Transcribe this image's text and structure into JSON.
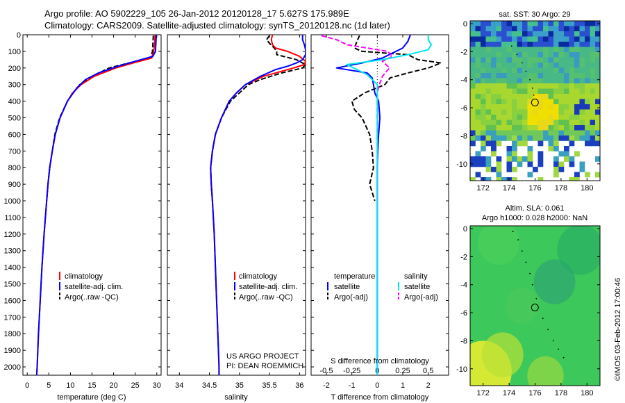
{
  "title": {
    "line1": "Argo profile: AO 5902229_105 26-Jan-2012 20120128_17 5.627S 175.989E",
    "line2": "Climatology: CARS2009. Satellite-adjusted climatology: synTS_20120128.nc (1d later)"
  },
  "colors": {
    "climatology": "#ff0000",
    "satellite": "#0000ff",
    "argo": "#000000",
    "sal_satellite": "#00e5ee",
    "sal_argo": "#ff00ff"
  },
  "chart_data": [
    {
      "type": "line",
      "panel": "temperature",
      "xlabel": "temperature (deg C)",
      "ylabel": "",
      "xlim": [
        -1,
        31
      ],
      "ylim": [
        2050,
        0
      ],
      "xticks": [
        0,
        5,
        10,
        15,
        20,
        25,
        30
      ],
      "xtick_labels": [
        "0",
        "5",
        "10",
        "15",
        "20",
        "25",
        "30"
      ],
      "yticks": [
        0,
        100,
        200,
        300,
        400,
        500,
        600,
        700,
        800,
        900,
        1000,
        1100,
        1200,
        1300,
        1400,
        1500,
        1600,
        1700,
        1800,
        1900,
        2000
      ],
      "ytick_labels": [
        "0",
        "100",
        "200",
        "300",
        "400",
        "500",
        "600",
        "700",
        "800",
        "900",
        "1000",
        "1100",
        "1200",
        "1300",
        "1400",
        "1500",
        "1600",
        "1700",
        "1800",
        "1900",
        "2000"
      ],
      "legend": [
        "climatology",
        "satellite-adj. clim.",
        "Argo(..raw -QC)"
      ],
      "series": [
        {
          "name": "climatology",
          "depth": [
            0,
            50,
            100,
            140,
            170,
            200,
            250,
            300,
            350,
            400,
            500,
            600,
            700,
            800,
            900,
            1000,
            1200,
            1400,
            1600,
            1800,
            2000,
            2050
          ],
          "values": [
            29.6,
            29.5,
            29.3,
            28.8,
            24.5,
            20.5,
            15.5,
            12.5,
            10.5,
            9.3,
            7.6,
            6.5,
            5.8,
            5.2,
            4.8,
            4.5,
            3.9,
            3.4,
            3.0,
            2.6,
            2.3,
            2.2
          ]
        },
        {
          "name": "satellite-adj. clim.",
          "depth": [
            0,
            50,
            100,
            130,
            160,
            190,
            230,
            270,
            320,
            400,
            500,
            600,
            700,
            800,
            900,
            1000,
            1200,
            1400,
            1600,
            1800,
            2000,
            2050
          ],
          "values": [
            29.9,
            29.8,
            29.7,
            29.1,
            25.0,
            21.0,
            16.5,
            13.5,
            11.5,
            9.3,
            7.6,
            6.5,
            5.8,
            5.2,
            4.8,
            4.5,
            3.9,
            3.4,
            3.0,
            2.6,
            2.3,
            2.2
          ]
        },
        {
          "name": "Argo(..raw -QC)",
          "depth": [
            5,
            50,
            100,
            140,
            170,
            200,
            250,
            300,
            350,
            400,
            500,
            600,
            700,
            800,
            900,
            1000
          ],
          "values": [
            29.2,
            29.1,
            29.0,
            28.5,
            23.5,
            19.0,
            15.0,
            12.2,
            10.6,
            9.3,
            7.5,
            6.4,
            5.8,
            5.2,
            4.8,
            4.5
          ]
        }
      ]
    },
    {
      "type": "line",
      "panel": "salinity",
      "xlabel": "salinity",
      "ylabel": "",
      "xlim": [
        33.8,
        36.1
      ],
      "ylim": [
        2050,
        0
      ],
      "xticks": [
        34,
        34.5,
        35,
        35.5,
        36
      ],
      "xtick_labels": [
        "34",
        "34.5",
        "35",
        "35.5",
        "36"
      ],
      "legend": [
        "climatology",
        "satellite-adj. clim.",
        "Argo(..raw -QC)"
      ],
      "annotations": [
        "US ARGO PROJECT",
        "PI: DEAN ROEMMICH"
      ],
      "series": [
        {
          "name": "climatology",
          "depth": [
            0,
            30,
            60,
            80,
            100,
            130,
            160,
            180,
            200,
            250,
            300,
            350,
            400,
            500,
            600,
            700,
            800,
            900,
            1000,
            1200,
            1400,
            1600,
            1800,
            2000,
            2050
          ],
          "values": [
            35.55,
            35.53,
            35.55,
            35.6,
            35.8,
            36.0,
            36.1,
            36.08,
            35.9,
            35.4,
            35.1,
            34.95,
            34.83,
            34.7,
            34.6,
            34.55,
            34.52,
            34.53,
            34.55,
            34.58,
            34.6,
            34.62,
            34.64,
            34.66,
            34.66
          ]
        },
        {
          "name": "satellite-adj. clim.",
          "depth": [
            0,
            30,
            60,
            90,
            120,
            150,
            170,
            190,
            210,
            250,
            300,
            350,
            400,
            500,
            600,
            700,
            800,
            900,
            1000,
            1200,
            1400,
            1600,
            1800,
            2000,
            2050
          ],
          "values": [
            36.05,
            36.05,
            36.08,
            36.1,
            36.1,
            36.05,
            35.95,
            35.8,
            35.6,
            35.35,
            35.1,
            34.95,
            34.83,
            34.7,
            34.6,
            34.55,
            34.52,
            34.53,
            34.55,
            34.58,
            34.6,
            34.62,
            34.64,
            34.66,
            34.66
          ]
        },
        {
          "name": "Argo(..raw -QC)",
          "depth": [
            5,
            30,
            60,
            80,
            100,
            120,
            150,
            180,
            200,
            230,
            270,
            300,
            350,
            400,
            500,
            600,
            700,
            800,
            900,
            1000
          ],
          "values": [
            35.5,
            35.45,
            35.52,
            35.58,
            35.62,
            35.62,
            35.95,
            36.1,
            36.05,
            35.7,
            35.35,
            35.15,
            35.0,
            34.85,
            34.7,
            34.6,
            34.55,
            34.52,
            34.53,
            34.55
          ]
        }
      ]
    },
    {
      "type": "line",
      "panel": "difference",
      "xlabel": "T difference from climatology",
      "xlabel_top": "S difference from climatology",
      "xlim": [
        -2.6,
        2.8
      ],
      "ylim": [
        2050,
        0
      ],
      "xticks": [
        -2,
        -1,
        0,
        1,
        2
      ],
      "xtick_labels": [
        "-2",
        "-1",
        "0",
        "1",
        "2"
      ],
      "sticks": [
        -0.5,
        -0.25,
        0,
        0.25,
        0.5
      ],
      "stick_labels": [
        "-0.5",
        "-0.25",
        "0",
        "0.25",
        "0.5"
      ],
      "legend": [
        "temperature",
        "satellite",
        "Argo(-adj)",
        "salinity",
        "satellite",
        "Argo(-adj)"
      ],
      "series": [
        {
          "name": "temperature satellite",
          "depth": [
            0,
            40,
            80,
            110,
            140,
            170,
            200,
            230,
            260,
            300,
            350,
            400,
            500,
            600,
            700,
            800,
            900,
            1000,
            1200,
            1400,
            1600,
            1800,
            2000,
            2050
          ],
          "values": [
            1.3,
            1.2,
            1.0,
            0.6,
            0.2,
            -0.6,
            -1.6,
            -0.4,
            -0.2,
            -0.15,
            -0.1,
            0.05,
            0.1,
            0.05,
            0.02,
            0.0,
            0.0,
            0.0,
            0.0,
            0.0,
            0.0,
            0.0,
            0.0,
            0.0
          ]
        },
        {
          "name": "temperature Argo(-adj)",
          "depth": [
            5,
            40,
            80,
            100,
            120,
            150,
            170,
            200,
            230,
            260,
            300,
            350,
            400,
            450,
            500,
            600,
            700,
            800,
            900,
            1000
          ],
          "values": [
            -0.7,
            -0.8,
            -0.9,
            -0.6,
            1.2,
            1.6,
            2.5,
            2.0,
            1.2,
            0.5,
            0.3,
            -0.5,
            -1.0,
            -0.9,
            -0.6,
            -0.3,
            -0.2,
            -0.15,
            -0.3,
            -0.1
          ]
        },
        {
          "name": "salinity satellite",
          "depth": [
            0,
            30,
            60,
            90,
            120,
            150,
            180,
            210,
            240,
            270,
            300,
            350,
            400,
            500,
            600,
            800,
            1000,
            1400,
            1800,
            2050
          ],
          "values": [
            0.5,
            0.5,
            0.53,
            0.5,
            0.3,
            0.05,
            -0.3,
            -0.2,
            -0.1,
            -0.05,
            0.0,
            0.0,
            0.0,
            0.0,
            0.0,
            0.0,
            0.0,
            0.0,
            0.0,
            0.0
          ]
        },
        {
          "name": "salinity Argo(-adj)",
          "depth": [
            5,
            30,
            60,
            100,
            130,
            160,
            200,
            250,
            300,
            350,
            400,
            600,
            800,
            1000
          ],
          "values": [
            -0.55,
            -0.4,
            -0.3,
            0.1,
            0.15,
            0.05,
            0.12,
            0.05,
            0.02,
            0.0,
            0.0,
            0.0,
            0.0,
            0.0
          ]
        }
      ]
    },
    {
      "type": "heatmap",
      "panel": "sst-map",
      "title": "sat. SST: 30 Argo: 29",
      "xlim": [
        171,
        181
      ],
      "ylim": [
        -11.2,
        0.2
      ],
      "xticks": [
        172,
        174,
        176,
        178,
        180
      ],
      "xtick_labels": [
        "172",
        "174",
        "176",
        "178",
        "180"
      ],
      "yticks": [
        0,
        -2,
        -4,
        -6,
        -8,
        -10
      ],
      "ytick_labels": [
        "0",
        "-2",
        "-4",
        "-6",
        "-8",
        "-10"
      ],
      "marker": {
        "lon": 175.989,
        "lat": -5.627
      }
    },
    {
      "type": "heatmap",
      "panel": "sla-map",
      "title_line1": "Altim. SLA: 0.061",
      "title_line2": "Argo h1000: 0.028 h2000: NaN",
      "xlim": [
        171,
        181
      ],
      "ylim": [
        -11.2,
        0.2
      ],
      "xticks": [
        172,
        174,
        176,
        178,
        180
      ],
      "xtick_labels": [
        "172",
        "174",
        "176",
        "178",
        "180"
      ],
      "yticks": [
        0,
        -2,
        -4,
        -6,
        -8,
        -10
      ],
      "ytick_labels": [
        "0",
        "-2",
        "-4",
        "-6",
        "-8",
        "-10"
      ],
      "marker": {
        "lon": 175.989,
        "lat": -5.627
      }
    }
  ],
  "credit": "©IMOS 03-Feb-2012 17:00:46"
}
